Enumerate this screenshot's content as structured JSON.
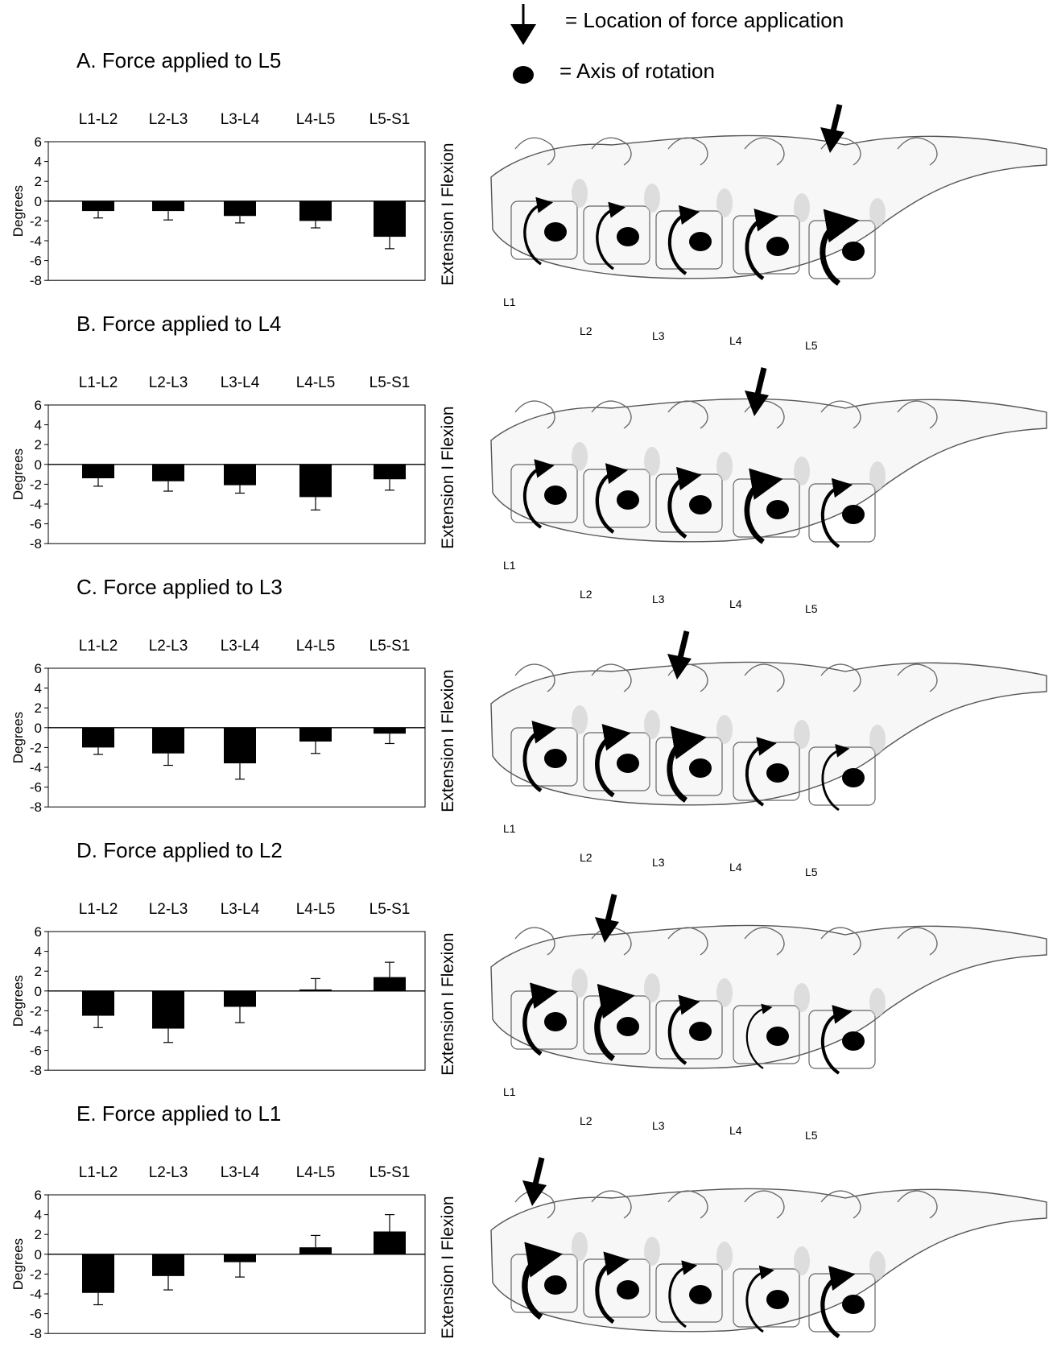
{
  "legend": {
    "force_text": "= Location  of force application",
    "axis_text": "= Axis of rotation"
  },
  "column_labels": [
    "L1-L2",
    "L2-L3",
    "L3-L4",
    "L4-L5",
    "L5-S1"
  ],
  "vertebra_labels": [
    "L1",
    "L2",
    "L3",
    "L4",
    "L5"
  ],
  "chart_data": [
    {
      "type": "bar",
      "title": "A. Force applied to L5",
      "categories": [
        "L1-L2",
        "L2-L3",
        "L3-L4",
        "L4-L5",
        "L5-S1"
      ],
      "values": [
        -1.0,
        -1.0,
        -1.5,
        -2.0,
        -3.6
      ],
      "error": [
        0.7,
        0.9,
        0.7,
        0.7,
        1.2
      ],
      "ylabel": "Degrees",
      "side_label": "Extension I Flexion",
      "yticks": [
        6,
        4,
        2,
        0,
        -2,
        -4,
        -6,
        -8
      ],
      "ylim": [
        -8,
        6
      ],
      "force_vertebra": "L5"
    },
    {
      "type": "bar",
      "title": "B. Force applied to L4",
      "categories": [
        "L1-L2",
        "L2-L3",
        "L3-L4",
        "L4-L5",
        "L5-S1"
      ],
      "values": [
        -1.4,
        -1.7,
        -2.1,
        -3.3,
        -1.5
      ],
      "error": [
        0.8,
        1.0,
        0.8,
        1.3,
        1.1
      ],
      "ylabel": "Degrees",
      "side_label": "Extension I Flexion",
      "yticks": [
        6,
        4,
        2,
        0,
        -2,
        -4,
        -6,
        -8
      ],
      "ylim": [
        -8,
        6
      ],
      "force_vertebra": "L4"
    },
    {
      "type": "bar",
      "title": "C. Force applied to L3",
      "categories": [
        "L1-L2",
        "L2-L3",
        "L3-L4",
        "L4-L5",
        "L5-S1"
      ],
      "values": [
        -2.0,
        -2.6,
        -3.6,
        -1.4,
        -0.6
      ],
      "error": [
        0.7,
        1.2,
        1.6,
        1.2,
        1.0
      ],
      "ylabel": "Degrees",
      "side_label": "Extension I Flexion",
      "yticks": [
        6,
        4,
        2,
        0,
        -2,
        -4,
        -6,
        -8
      ],
      "ylim": [
        -8,
        6
      ],
      "force_vertebra": "L3"
    },
    {
      "type": "bar",
      "title": "D. Force applied to L2",
      "categories": [
        "L1-L2",
        "L2-L3",
        "L3-L4",
        "L4-L5",
        "L5-S1"
      ],
      "values": [
        -2.5,
        -3.8,
        -1.6,
        0.15,
        1.4
      ],
      "error": [
        1.2,
        1.4,
        1.6,
        1.1,
        1.5
      ],
      "ylabel": "Degrees",
      "side_label": "Extension I Flexion",
      "yticks": [
        6,
        4,
        2,
        0,
        -2,
        -4,
        -6,
        -8
      ],
      "ylim": [
        -8,
        6
      ],
      "force_vertebra": "L2"
    },
    {
      "type": "bar",
      "title": "E. Force applied to L1",
      "categories": [
        "L1-L2",
        "L2-L3",
        "L3-L4",
        "L4-L5",
        "L5-S1"
      ],
      "values": [
        -3.9,
        -2.2,
        -0.8,
        0.7,
        2.3
      ],
      "error": [
        1.2,
        1.4,
        1.5,
        1.2,
        1.7
      ],
      "ylabel": "Degrees",
      "side_label": "Extension I Flexion",
      "yticks": [
        6,
        4,
        2,
        0,
        -2,
        -4,
        -6,
        -8
      ],
      "ylim": [
        -8,
        6
      ],
      "force_vertebra": "L1"
    }
  ]
}
